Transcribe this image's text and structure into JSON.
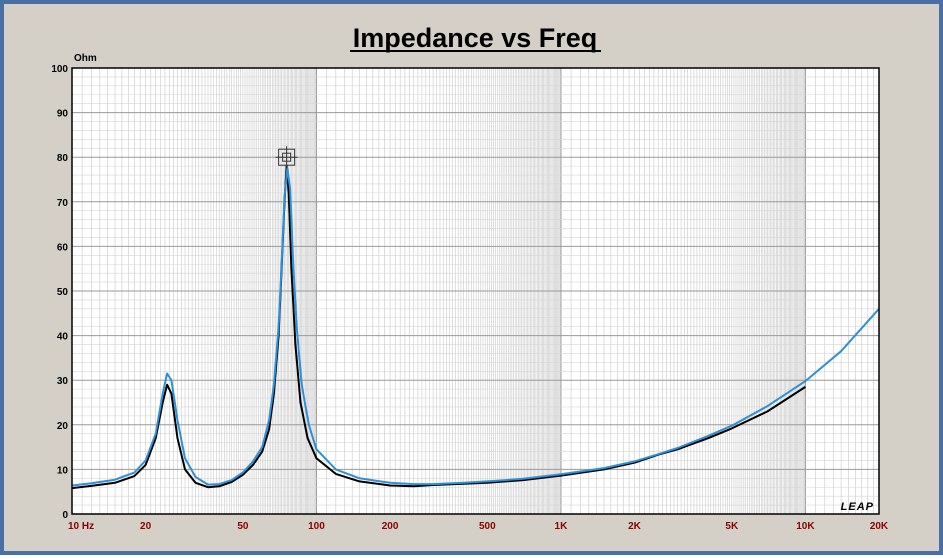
{
  "chart_data": {
    "type": "line",
    "title": "Impedance vs Freq",
    "ylabel": "Ohm",
    "xlabel": "",
    "x_scale": "log",
    "xlim": [
      10,
      20000
    ],
    "ylim": [
      0,
      100
    ],
    "grid": true,
    "logo_text": "LEAP",
    "y_ticks": [
      0,
      10,
      20,
      30,
      40,
      50,
      60,
      70,
      80,
      90,
      100
    ],
    "x_tick_labels": [
      {
        "value": 10,
        "label": "10  Hz"
      },
      {
        "value": 20,
        "label": "20"
      },
      {
        "value": 50,
        "label": "50"
      },
      {
        "value": 100,
        "label": "100"
      },
      {
        "value": 200,
        "label": "200"
      },
      {
        "value": 500,
        "label": "500"
      },
      {
        "value": 1000,
        "label": "1K"
      },
      {
        "value": 2000,
        "label": "2K"
      },
      {
        "value": 5000,
        "label": "5K"
      },
      {
        "value": 10000,
        "label": "10K"
      },
      {
        "value": 20000,
        "label": "20K"
      }
    ],
    "series": [
      {
        "color": "#000000",
        "points": [
          [
            10,
            5.8
          ],
          [
            12,
            6.3
          ],
          [
            15,
            7.0
          ],
          [
            18,
            8.5
          ],
          [
            20,
            11
          ],
          [
            22,
            17
          ],
          [
            23.5,
            25
          ],
          [
            24.5,
            29
          ],
          [
            25.5,
            27
          ],
          [
            27,
            17
          ],
          [
            29,
            10
          ],
          [
            32,
            7
          ],
          [
            36,
            6
          ],
          [
            40,
            6.2
          ],
          [
            45,
            7.2
          ],
          [
            50,
            8.8
          ],
          [
            55,
            11
          ],
          [
            60,
            14
          ],
          [
            64,
            19
          ],
          [
            67,
            27
          ],
          [
            70,
            40
          ],
          [
            72,
            55
          ],
          [
            74,
            70
          ],
          [
            75.5,
            78
          ],
          [
            77,
            72
          ],
          [
            79,
            55
          ],
          [
            82,
            38
          ],
          [
            86,
            25
          ],
          [
            92,
            17
          ],
          [
            100,
            12.5
          ],
          [
            120,
            9
          ],
          [
            150,
            7.3
          ],
          [
            200,
            6.4
          ],
          [
            250,
            6.2
          ],
          [
            300,
            6.5
          ],
          [
            400,
            6.8
          ],
          [
            500,
            7.0
          ],
          [
            700,
            7.6
          ],
          [
            1000,
            8.6
          ],
          [
            1500,
            10
          ],
          [
            2000,
            11.5
          ],
          [
            2500,
            13.3
          ],
          [
            3000,
            14.5
          ],
          [
            4000,
            17
          ],
          [
            5000,
            19.2
          ],
          [
            7000,
            23
          ],
          [
            10000,
            28.5
          ]
        ]
      },
      {
        "color": "#2f8fd8",
        "points": [
          [
            10,
            6.4
          ],
          [
            12,
            6.9
          ],
          [
            15,
            7.7
          ],
          [
            18,
            9.3
          ],
          [
            20,
            12
          ],
          [
            22,
            18
          ],
          [
            23.5,
            27
          ],
          [
            24.5,
            31.5
          ],
          [
            25.5,
            30
          ],
          [
            27,
            21
          ],
          [
            29,
            12.5
          ],
          [
            32,
            8.3
          ],
          [
            36,
            6.6
          ],
          [
            40,
            6.7
          ],
          [
            45,
            7.6
          ],
          [
            50,
            9.3
          ],
          [
            55,
            11.8
          ],
          [
            60,
            15
          ],
          [
            64,
            21
          ],
          [
            67,
            29
          ],
          [
            70,
            42
          ],
          [
            72,
            56
          ],
          [
            74,
            71
          ],
          [
            76,
            77.5
          ],
          [
            78,
            73
          ],
          [
            80,
            58
          ],
          [
            83,
            42
          ],
          [
            87,
            29
          ],
          [
            93,
            20
          ],
          [
            100,
            14.5
          ],
          [
            120,
            10
          ],
          [
            150,
            8
          ],
          [
            200,
            7
          ],
          [
            250,
            6.7
          ],
          [
            300,
            6.7
          ],
          [
            400,
            7
          ],
          [
            500,
            7.3
          ],
          [
            700,
            7.9
          ],
          [
            1000,
            8.9
          ],
          [
            1500,
            10.3
          ],
          [
            2000,
            11.8
          ],
          [
            2500,
            13.4
          ],
          [
            3000,
            14.8
          ],
          [
            4000,
            17.5
          ],
          [
            5000,
            19.8
          ],
          [
            7000,
            24.2
          ],
          [
            10000,
            29.8
          ],
          [
            14000,
            36.5
          ],
          [
            20000,
            46
          ]
        ]
      }
    ]
  }
}
